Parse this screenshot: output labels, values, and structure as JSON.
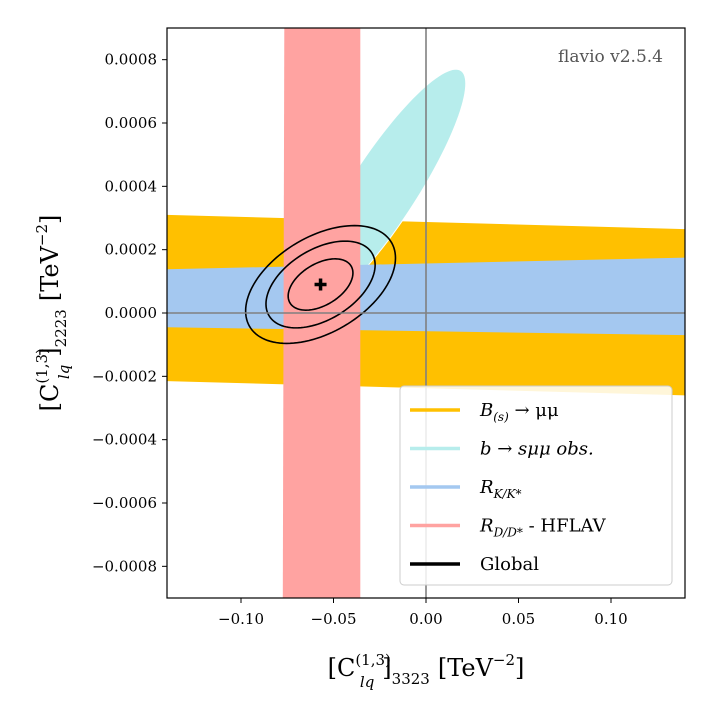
{
  "chart_data": {
    "type": "contour",
    "title": "",
    "watermark": "flavio v2.5.4",
    "xlabel": {
      "base": "[C",
      "sup": "(1,3)",
      "sub": "lq",
      "tail": "]",
      "tail_sub": "3323",
      "unit": "[TeV",
      "unit_sup": "−2",
      "unit_close": "]"
    },
    "ylabel": {
      "base": "[C",
      "sup": "(1,3)",
      "sub": "lq",
      "tail": "]",
      "tail_sub": "2223",
      "unit": "[TeV",
      "unit_sup": "−2",
      "unit_close": "]"
    },
    "xlim": [
      -0.14,
      0.14
    ],
    "ylim": [
      -0.0009,
      0.0009
    ],
    "xticks": [
      {
        "value": -0.1,
        "label": "−0.10"
      },
      {
        "value": -0.05,
        "label": "−0.05"
      },
      {
        "value": 0.0,
        "label": "0.00"
      },
      {
        "value": 0.05,
        "label": "0.05"
      },
      {
        "value": 0.1,
        "label": "0.10"
      }
    ],
    "yticks": [
      {
        "value": 0.0008,
        "label": "0.0008"
      },
      {
        "value": 0.0006,
        "label": "0.0006"
      },
      {
        "value": 0.0004,
        "label": "0.0004"
      },
      {
        "value": 0.0002,
        "label": "0.0002"
      },
      {
        "value": 0.0,
        "label": "0.0000"
      },
      {
        "value": -0.0002,
        "label": "−0.0002"
      },
      {
        "value": -0.0004,
        "label": "−0.0004"
      },
      {
        "value": -0.0006,
        "label": "−0.0006"
      },
      {
        "value": -0.0008,
        "label": "−0.0008"
      }
    ],
    "reference_lines": {
      "x": 0.0,
      "y": 0.0,
      "color": "#808080"
    },
    "series": [
      {
        "name": "B_(s) → μμ",
        "color": "#ffc000",
        "kind": "band",
        "outer": {
          "x": [
            -0.14,
            0.14
          ],
          "upper": [
            0.00031,
            0.000265
          ],
          "lower": [
            -0.000215,
            -0.00026
          ]
        }
      },
      {
        "name": "b → sμμ obs.",
        "color": "#b7edec",
        "kind": "ellipse",
        "center": [
          -0.023,
          0.00039
        ],
        "semi_axis_x": 0.0445,
        "semi_axis_y": 0.00038,
        "correlation": 0.88
      },
      {
        "name": "R_K/K*",
        "color": "#a4c8f0",
        "kind": "band",
        "outer": {
          "x": [
            -0.14,
            0.14
          ],
          "upper": [
            0.000138,
            0.000175
          ],
          "lower": [
            -4.5e-05,
            -7e-05
          ]
        }
      },
      {
        "name": "R_D/D* - HFLAV",
        "color": "#ffa3a1",
        "kind": "vband",
        "left": [
          -0.0765,
          -0.0775
        ],
        "right": [
          -0.0355,
          -0.0355
        ]
      },
      {
        "name": "Global",
        "color": "#000000",
        "kind": "contours",
        "best_fit": [
          -0.057,
          9e-05
        ],
        "contours": [
          {
            "sigma": 1,
            "semi_axis_x": 0.0175,
            "semi_axis_y": 8.1e-05,
            "correlation": 0.45
          },
          {
            "sigma": 2,
            "semi_axis_x": 0.0295,
            "semi_axis_y": 0.000137,
            "correlation": 0.45
          },
          {
            "sigma": 3,
            "semi_axis_x": 0.0405,
            "semi_axis_y": 0.000186,
            "correlation": 0.45
          }
        ]
      }
    ],
    "legend": {
      "placement": "bottom-right",
      "entries": [
        {
          "label_main": "B",
          "label_sub": "(s)",
          "label_tail": " → μμ",
          "color": "#ffc000"
        },
        {
          "label_main": "b → sμμ obs.",
          "label_sub": "",
          "label_tail": "",
          "color": "#b7edec"
        },
        {
          "label_main": "R",
          "label_sub": "K/K*",
          "label_tail": "",
          "color": "#a4c8f0"
        },
        {
          "label_main": "R",
          "label_sub": "D/D*",
          "label_tail": " - HFLAV",
          "color": "#ffa3a1"
        },
        {
          "label_main": "Global",
          "label_sub": "",
          "label_tail": "",
          "color": "#000000"
        }
      ]
    }
  }
}
